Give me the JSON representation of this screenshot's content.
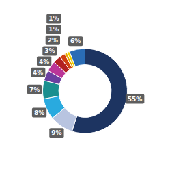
{
  "chart_data": {
    "type": "donut",
    "values": [
      55,
      9,
      8,
      7,
      4,
      4,
      3,
      2,
      1,
      1,
      6
    ],
    "value_labels": [
      "55%",
      "9%",
      "8%",
      "7%",
      "4%",
      "4%",
      "3%",
      "2%",
      "1%",
      "1%",
      "6%"
    ],
    "colors": [
      "#1d3461",
      "#b8c4e0",
      "#29aadf",
      "#1a8f8f",
      "#6b3fa0",
      "#bb3598",
      "#b22020",
      "#d04010",
      "#e8a800",
      "#f0d000",
      "#2a6cb5"
    ],
    "data_labels": true
  }
}
